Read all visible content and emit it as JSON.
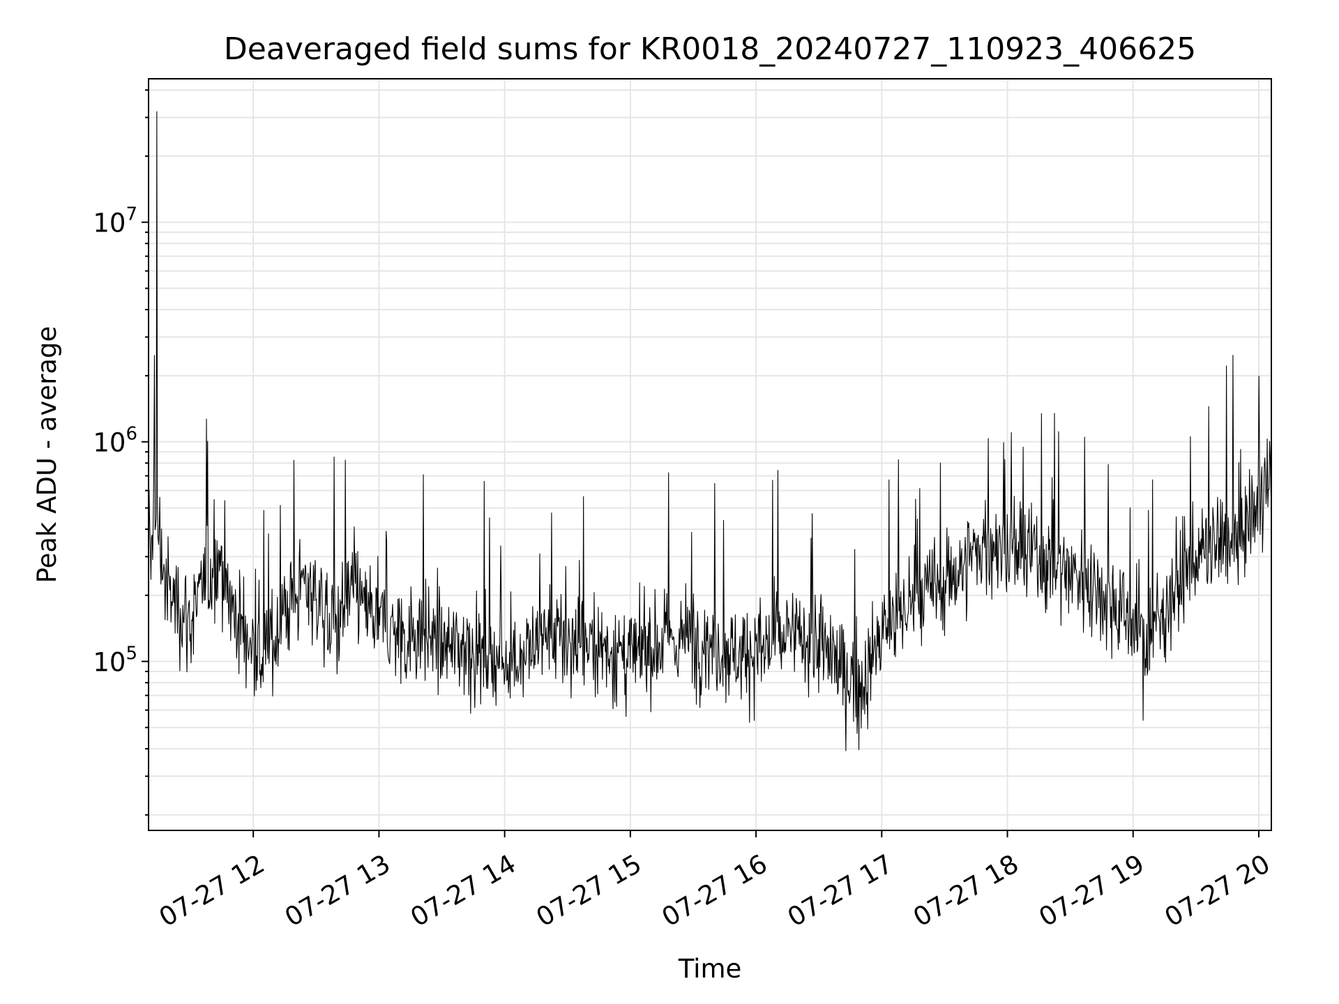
{
  "chart_data": {
    "type": "line",
    "title": "Deaveraged field sums for KR0018_20240727_110923_406625",
    "xlabel": "Time",
    "ylabel": "Peak ADU - average",
    "yscale": "log",
    "xlim": [
      "2024-07-27 11:10",
      "2024-07-27 20:06"
    ],
    "ylim": [
      17000,
      45000000
    ],
    "xticks": [
      "07-27 12",
      "07-27 13",
      "07-27 14",
      "07-27 15",
      "07-27 16",
      "07-27 17",
      "07-27 18",
      "07-27 19",
      "07-27 20"
    ],
    "yticks": [
      {
        "base": "10",
        "exp": "5",
        "value": 100000
      },
      {
        "base": "10",
        "exp": "6",
        "value": 1000000
      },
      {
        "base": "10",
        "exp": "7",
        "value": 10000000
      }
    ],
    "grid": true,
    "line_color": "#000000",
    "series": [
      {
        "x": [
          "2024-07-27 11:10",
          "2024-07-27 11:11",
          "2024-07-27 11:12",
          "2024-07-27 11:14",
          "2024-07-27 11:15",
          "2024-07-27 11:18",
          "2024-07-27 11:20",
          "2024-07-27 11:25",
          "2024-07-27 11:30",
          "2024-07-27 11:35",
          "2024-07-27 11:40",
          "2024-07-27 11:45",
          "2024-07-27 11:50",
          "2024-07-27 11:55",
          "2024-07-27 12:00",
          "2024-07-27 12:05",
          "2024-07-27 12:10",
          "2024-07-27 12:15",
          "2024-07-27 12:20",
          "2024-07-27 12:25",
          "2024-07-27 12:30",
          "2024-07-27 12:35",
          "2024-07-27 12:40",
          "2024-07-27 12:45",
          "2024-07-27 12:50",
          "2024-07-27 12:55",
          "2024-07-27 13:00",
          "2024-07-27 13:10",
          "2024-07-27 13:20",
          "2024-07-27 13:30",
          "2024-07-27 13:40",
          "2024-07-27 13:50",
          "2024-07-27 14:00",
          "2024-07-27 14:10",
          "2024-07-27 14:20",
          "2024-07-27 14:30",
          "2024-07-27 14:40",
          "2024-07-27 14:50",
          "2024-07-27 15:00",
          "2024-07-27 15:10",
          "2024-07-27 15:20",
          "2024-07-27 15:30",
          "2024-07-27 15:40",
          "2024-07-27 15:50",
          "2024-07-27 16:00",
          "2024-07-27 16:10",
          "2024-07-27 16:20",
          "2024-07-27 16:30",
          "2024-07-27 16:40",
          "2024-07-27 16:50",
          "2024-07-27 17:00",
          "2024-07-27 17:10",
          "2024-07-27 17:20",
          "2024-07-27 17:30",
          "2024-07-27 17:40",
          "2024-07-27 17:50",
          "2024-07-27 18:00",
          "2024-07-27 18:10",
          "2024-07-27 18:20",
          "2024-07-27 18:30",
          "2024-07-27 18:40",
          "2024-07-27 18:50",
          "2024-07-27 19:00",
          "2024-07-27 19:05",
          "2024-07-27 19:10",
          "2024-07-27 19:20",
          "2024-07-27 19:30",
          "2024-07-27 19:40",
          "2024-07-27 19:50",
          "2024-07-27 20:00",
          "2024-07-27 20:05"
        ],
        "y": [
          400000,
          300000,
          350000,
          32000000,
          400000,
          220000,
          200000,
          180000,
          150000,
          200000,
          250000,
          300000,
          170000,
          140000,
          110000,
          100000,
          130000,
          170000,
          200000,
          230000,
          200000,
          160000,
          150000,
          190000,
          210000,
          160000,
          150000,
          130000,
          140000,
          115000,
          120000,
          110000,
          100000,
          110000,
          130000,
          120000,
          120000,
          115000,
          100000,
          120000,
          125000,
          130000,
          120000,
          110000,
          110000,
          125000,
          130000,
          120000,
          95000,
          75000,
          130000,
          170000,
          200000,
          230000,
          280000,
          350000,
          320000,
          310000,
          280000,
          260000,
          230000,
          190000,
          150000,
          120000,
          140000,
          220000,
          300000,
          330000,
          370000,
          520000,
          650000
        ]
      }
    ]
  }
}
